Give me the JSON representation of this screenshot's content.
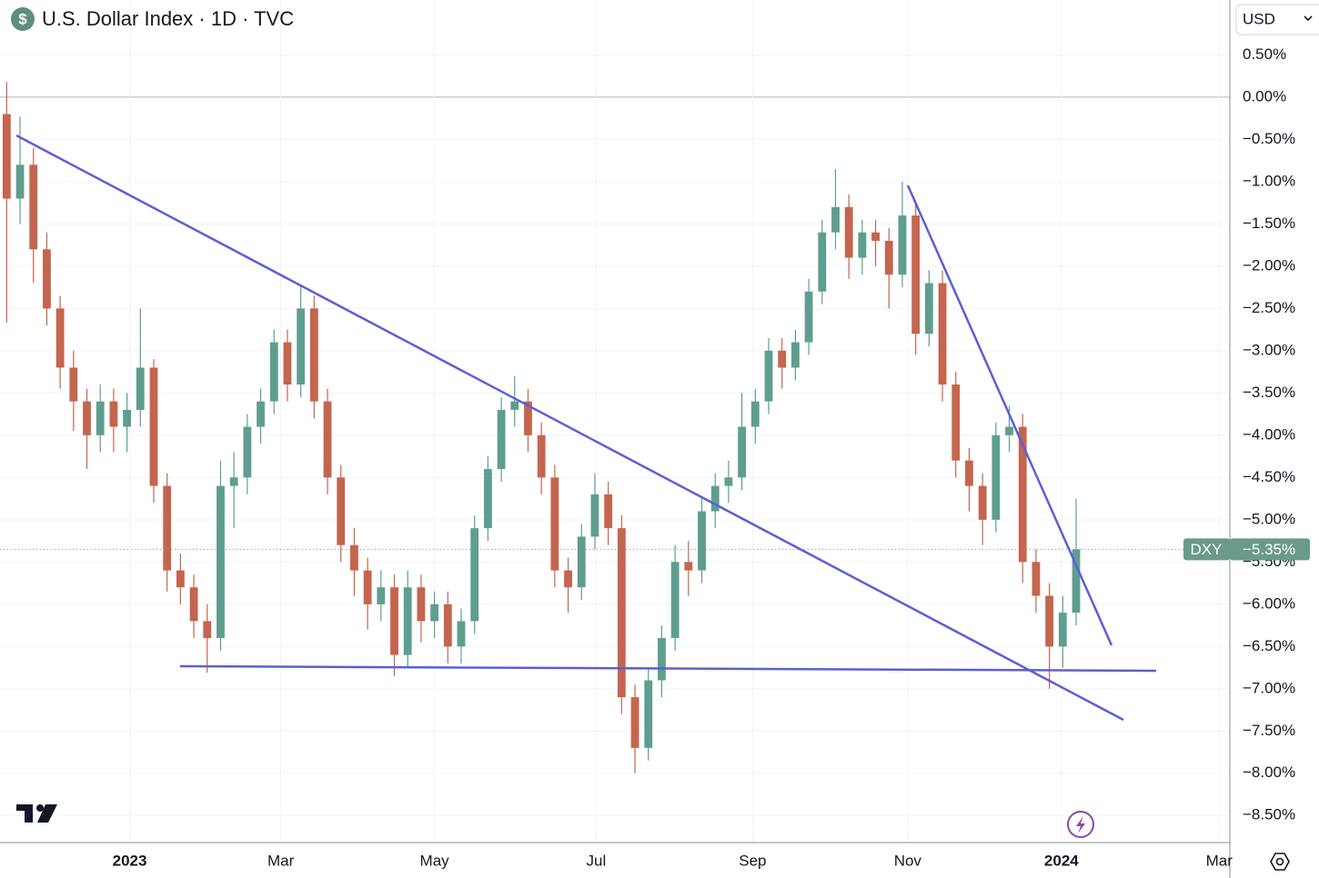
{
  "chart_data": {
    "type": "candlestick",
    "title": "U.S. Dollar Index · 1D · TVC",
    "symbol_icon": "$",
    "currency": "USD",
    "color_up": "#5f9e8f",
    "color_down": "#c4654f",
    "grid": true,
    "xlim": [
      -0.5,
      91.5
    ],
    "xticks": [
      {
        "value": 9.2,
        "label": "2023"
      },
      {
        "value": 20.5,
        "label": "Mar"
      },
      {
        "value": 32.0,
        "label": "May"
      },
      {
        "value": 44.1,
        "label": "Jul"
      },
      {
        "value": 55.8,
        "label": "Sep"
      },
      {
        "value": 67.4,
        "label": "Nov"
      },
      {
        "value": 78.9,
        "label": "2024"
      },
      {
        "value": 90.7,
        "label": "Mar"
      }
    ],
    "ylim": [
      -8.82,
      1.15
    ],
    "yticks": [
      {
        "value": 0.5,
        "label": "0.50%"
      },
      {
        "value": 0,
        "label": "0.00%"
      },
      {
        "value": -0.5,
        "label": "−0.50%"
      },
      {
        "value": -1,
        "label": "−1.00%"
      },
      {
        "value": -1.5,
        "label": "−1.50%"
      },
      {
        "value": -2,
        "label": "−2.00%"
      },
      {
        "value": -2.5,
        "label": "−2.50%"
      },
      {
        "value": -3,
        "label": "−3.00%"
      },
      {
        "value": -3.5,
        "label": "−3.50%"
      },
      {
        "value": -4,
        "label": "−4.00%"
      },
      {
        "value": -4.5,
        "label": "−4.50%"
      },
      {
        "value": -5,
        "label": "−5.00%"
      },
      {
        "value": -5.5,
        "label": "−5.50%"
      },
      {
        "value": -6,
        "label": "−6.00%"
      },
      {
        "value": -6.5,
        "label": "−6.50%"
      },
      {
        "value": -7,
        "label": "−7.00%"
      },
      {
        "value": -7.5,
        "label": "−7.50%"
      },
      {
        "value": -8,
        "label": "−8.00%"
      },
      {
        "value": -8.5,
        "label": "−8.50%"
      }
    ],
    "open": [
      -0.2,
      -1.2,
      -0.8,
      -1.8,
      -2.5,
      -3.2,
      -3.6,
      -4.0,
      -3.6,
      -3.9,
      -3.7,
      -3.2,
      -4.6,
      -5.6,
      -5.8,
      -6.2,
      -6.4,
      -4.6,
      -4.5,
      -3.9,
      -3.6,
      -2.9,
      -3.4,
      -2.5,
      -3.6,
      -4.5,
      -5.3,
      -5.6,
      -6.0,
      -5.8,
      -6.6,
      -5.8,
      -6.2,
      -6.0,
      -6.5,
      -6.2,
      -5.1,
      -4.4,
      -3.7,
      -3.6,
      -4.0,
      -4.5,
      -5.6,
      -5.8,
      -5.2,
      -4.7,
      -5.1,
      -7.1,
      -7.7,
      -6.9,
      -6.4,
      -5.5,
      -5.6,
      -4.9,
      -4.6,
      -4.5,
      -3.9,
      -3.6,
      -3.0,
      -3.2,
      -2.9,
      -2.3,
      -1.6,
      -1.3,
      -1.9,
      -1.6,
      -1.7,
      -2.1,
      -1.4,
      -2.8,
      -2.2,
      -3.4,
      -4.3,
      -4.6,
      -5.0,
      -4.0,
      -3.9,
      -5.5,
      -5.9,
      -6.5,
      -6.1
    ],
    "high": [
      0.18,
      -0.23,
      -0.6,
      -1.6,
      -2.35,
      -3.0,
      -3.45,
      -3.4,
      -3.45,
      -3.5,
      -2.5,
      -3.1,
      -4.45,
      -5.4,
      -5.65,
      -6.0,
      -4.3,
      -4.2,
      -3.75,
      -3.45,
      -2.75,
      -2.75,
      -2.24,
      -2.35,
      -3.45,
      -4.35,
      -5.1,
      -5.45,
      -5.6,
      -5.65,
      -5.6,
      -5.65,
      -5.85,
      -5.85,
      -6.05,
      -4.95,
      -4.25,
      -3.55,
      -3.3,
      -3.45,
      -3.85,
      -4.35,
      -5.45,
      -5.05,
      -4.45,
      -4.55,
      -4.95,
      -6.95,
      -6.75,
      -6.25,
      -5.3,
      -5.25,
      -4.75,
      -4.45,
      -4.3,
      -3.5,
      -3.45,
      -2.85,
      -2.85,
      -2.75,
      -2.15,
      -1.45,
      -0.85,
      -1.15,
      -1.45,
      -1.45,
      -1.55,
      -1.0,
      -1.25,
      -2.05,
      -2.05,
      -3.25,
      -4.15,
      -4.45,
      -3.85,
      -3.65,
      -3.75,
      -5.35,
      -5.75,
      -5.9,
      -4.75
    ],
    "low": [
      -2.67,
      -1.5,
      -2.2,
      -2.7,
      -3.45,
      -3.95,
      -4.4,
      -4.2,
      -4.2,
      -4.2,
      -3.9,
      -4.8,
      -5.85,
      -6.0,
      -6.4,
      -6.81,
      -6.55,
      -5.1,
      -4.7,
      -4.1,
      -3.75,
      -3.6,
      -3.55,
      -3.8,
      -4.7,
      -5.5,
      -5.9,
      -6.3,
      -6.2,
      -6.85,
      -6.75,
      -6.45,
      -6.4,
      -6.7,
      -6.7,
      -6.35,
      -5.25,
      -4.55,
      -3.9,
      -4.2,
      -4.7,
      -5.8,
      -6.1,
      -5.95,
      -5.35,
      -5.3,
      -7.3,
      -8.0,
      -7.85,
      -7.1,
      -6.55,
      -5.9,
      -5.75,
      -5.1,
      -4.8,
      -4.65,
      -4.1,
      -3.75,
      -3.45,
      -3.35,
      -3.05,
      -2.45,
      -1.8,
      -2.15,
      -2.1,
      -2.0,
      -2.5,
      -2.25,
      -3.05,
      -2.95,
      -3.6,
      -4.5,
      -4.9,
      -5.3,
      -5.15,
      -4.2,
      -5.75,
      -6.1,
      -7.0,
      -6.75,
      -6.25
    ],
    "close": [
      -1.2,
      -0.8,
      -1.8,
      -2.5,
      -3.2,
      -3.6,
      -4.0,
      -3.6,
      -3.9,
      -3.7,
      -3.2,
      -4.6,
      -5.6,
      -5.8,
      -6.2,
      -6.4,
      -4.6,
      -4.5,
      -3.9,
      -3.6,
      -2.9,
      -3.4,
      -2.5,
      -3.6,
      -4.5,
      -5.3,
      -5.6,
      -6.0,
      -5.8,
      -6.6,
      -5.8,
      -6.2,
      -6.0,
      -6.5,
      -6.2,
      -5.1,
      -4.4,
      -3.7,
      -3.6,
      -4.0,
      -4.5,
      -5.6,
      -5.8,
      -5.2,
      -4.7,
      -5.1,
      -7.1,
      -7.7,
      -6.9,
      -6.4,
      -5.5,
      -5.6,
      -4.9,
      -4.6,
      -4.5,
      -3.9,
      -3.6,
      -3.0,
      -3.2,
      -2.9,
      -2.3,
      -1.6,
      -1.3,
      -1.9,
      -1.6,
      -1.7,
      -2.1,
      -1.4,
      -2.8,
      -2.2,
      -3.4,
      -4.3,
      -4.6,
      -5.0,
      -4.0,
      -3.9,
      -5.5,
      -5.9,
      -6.5,
      -6.1,
      -5.35
    ],
    "last": {
      "name": "DXY",
      "value": -5.35,
      "label": "−5.35%",
      "color": "#6a9a8b"
    }
  }
}
